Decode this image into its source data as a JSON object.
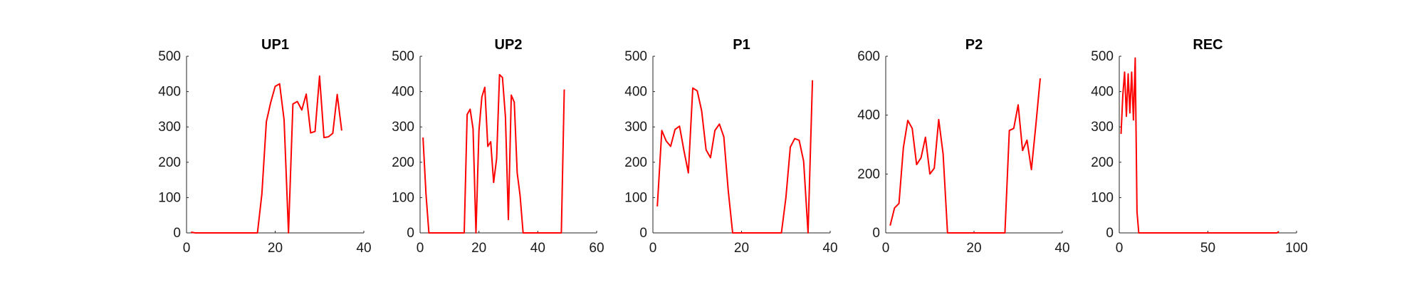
{
  "chart_data": [
    {
      "type": "line",
      "title": "UP1",
      "xlabel": "",
      "ylabel": "",
      "xlim": [
        0,
        40
      ],
      "ylim": [
        0,
        500
      ],
      "xticks": [
        0,
        20,
        40
      ],
      "yticks": [
        0,
        100,
        200,
        300,
        400,
        500
      ],
      "grid": false,
      "color": "#ff0000",
      "x": [
        1,
        2,
        3,
        4,
        5,
        6,
        7,
        8,
        9,
        10,
        11,
        12,
        13,
        14,
        15,
        16,
        17,
        18,
        19,
        20,
        21,
        22,
        23,
        24,
        25,
        26,
        27,
        28,
        29,
        30,
        31,
        32,
        33,
        34,
        35
      ],
      "y": [
        2,
        0,
        0,
        0,
        0,
        0,
        0,
        0,
        0,
        0,
        0,
        0,
        0,
        0,
        0,
        0,
        110,
        315,
        370,
        415,
        422,
        320,
        0,
        365,
        372,
        348,
        393,
        283,
        287,
        444,
        270,
        272,
        282,
        392,
        290
      ]
    },
    {
      "type": "line",
      "title": "UP2",
      "xlabel": "",
      "ylabel": "",
      "xlim": [
        0,
        60
      ],
      "ylim": [
        0,
        500
      ],
      "xticks": [
        0,
        20,
        40,
        60
      ],
      "yticks": [
        0,
        100,
        200,
        300,
        400,
        500
      ],
      "grid": false,
      "color": "#ff0000",
      "x": [
        1,
        2,
        3,
        4,
        5,
        6,
        7,
        8,
        9,
        10,
        11,
        12,
        13,
        14,
        15,
        16,
        17,
        18,
        19,
        20,
        21,
        22,
        23,
        24,
        25,
        26,
        27,
        28,
        29,
        30,
        31,
        32,
        33,
        34,
        35,
        36,
        37,
        38,
        39,
        40,
        41,
        42,
        43,
        44,
        45,
        46,
        47,
        48,
        49
      ],
      "y": [
        270,
        110,
        0,
        0,
        0,
        0,
        0,
        0,
        0,
        0,
        0,
        0,
        0,
        0,
        0,
        335,
        350,
        295,
        0,
        290,
        385,
        412,
        245,
        258,
        143,
        210,
        448,
        440,
        328,
        38,
        390,
        370,
        170,
        105,
        0,
        0,
        0,
        0,
        0,
        0,
        0,
        0,
        0,
        0,
        0,
        0,
        0,
        0,
        406
      ]
    },
    {
      "type": "line",
      "title": "P1",
      "xlabel": "",
      "ylabel": "",
      "xlim": [
        0,
        40
      ],
      "ylim": [
        0,
        500
      ],
      "xticks": [
        0,
        20,
        40
      ],
      "yticks": [
        0,
        100,
        200,
        300,
        400,
        500
      ],
      "grid": false,
      "color": "#ff0000",
      "x": [
        1,
        2,
        3,
        4,
        5,
        6,
        7,
        8,
        9,
        10,
        11,
        12,
        13,
        14,
        15,
        16,
        17,
        18,
        19,
        20,
        21,
        22,
        23,
        24,
        25,
        26,
        27,
        28,
        29,
        30,
        31,
        32,
        33,
        34,
        35,
        36
      ],
      "y": [
        75,
        290,
        260,
        245,
        293,
        302,
        233,
        170,
        410,
        402,
        345,
        235,
        213,
        290,
        308,
        272,
        120,
        0,
        0,
        0,
        0,
        0,
        0,
        0,
        0,
        0,
        0,
        0,
        0,
        100,
        243,
        267,
        262,
        203,
        0,
        432
      ]
    },
    {
      "type": "line",
      "title": "P2",
      "xlabel": "",
      "ylabel": "",
      "xlim": [
        0,
        40
      ],
      "ylim": [
        0,
        600
      ],
      "xticks": [
        0,
        20,
        40
      ],
      "yticks": [
        0,
        200,
        400,
        600
      ],
      "grid": false,
      "color": "#ff0000",
      "x": [
        1,
        2,
        3,
        4,
        5,
        6,
        7,
        8,
        9,
        10,
        11,
        12,
        13,
        14,
        15,
        16,
        17,
        18,
        19,
        20,
        21,
        22,
        23,
        24,
        25,
        26,
        27,
        28,
        29,
        30,
        31,
        32,
        33,
        34,
        35
      ],
      "y": [
        25,
        85,
        100,
        290,
        382,
        355,
        232,
        255,
        325,
        200,
        220,
        385,
        268,
        0,
        0,
        0,
        0,
        0,
        0,
        0,
        0,
        0,
        0,
        0,
        0,
        0,
        0,
        348,
        355,
        435,
        280,
        315,
        215,
        365,
        525
      ]
    },
    {
      "type": "line",
      "title": "REC",
      "xlabel": "",
      "ylabel": "",
      "xlim": [
        0,
        100
      ],
      "ylim": [
        0,
        500
      ],
      "xticks": [
        0,
        50,
        100
      ],
      "yticks": [
        0,
        100,
        200,
        300,
        400,
        500
      ],
      "grid": false,
      "color": "#ff0000",
      "x": [
        1,
        2,
        3,
        4,
        5,
        6,
        7,
        8,
        9,
        10,
        11,
        12,
        13,
        20,
        30,
        40,
        50,
        60,
        70,
        80,
        89,
        90
      ],
      "y": [
        280,
        390,
        455,
        330,
        450,
        340,
        455,
        320,
        495,
        60,
        0,
        0,
        0,
        0,
        0,
        0,
        0,
        0,
        0,
        0,
        0,
        4
      ]
    }
  ]
}
